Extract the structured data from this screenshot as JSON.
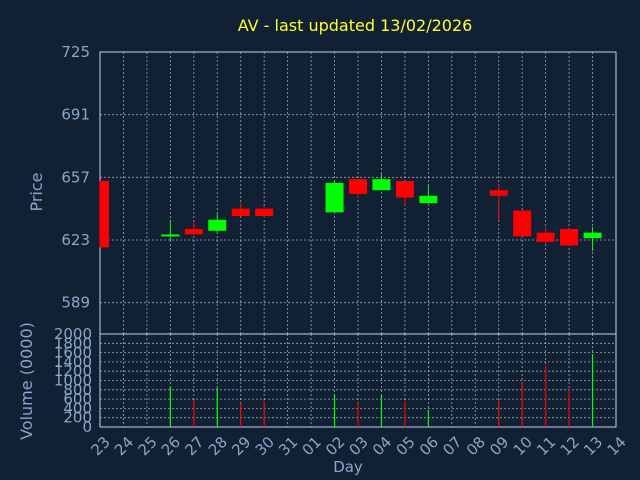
{
  "colors": {
    "background": "#112033",
    "plot_border": "#c8d2dc",
    "grid": "#c8d2dc",
    "title": "#ffff33",
    "axis_text": "#8aa6c8",
    "up": "#00ff00",
    "down": "#ff0000"
  },
  "chart_data": [
    {
      "type": "candlestick",
      "title": "AV - last updated 13/02/2026",
      "ylabel": "Price",
      "ylim": [
        572,
        725
      ],
      "yticks": [
        589,
        623,
        657,
        691,
        725
      ],
      "grid": true,
      "candles": [
        {
          "day": "23",
          "open": 655,
          "high": 655,
          "low": 619,
          "close": 619
        },
        {
          "day": "26",
          "open": 625,
          "high": 634,
          "low": 623,
          "close": 626
        },
        {
          "day": "27",
          "open": 629,
          "high": 633,
          "low": 626,
          "close": 626
        },
        {
          "day": "28",
          "open": 628,
          "high": 637,
          "low": 627,
          "close": 634
        },
        {
          "day": "29",
          "open": 640,
          "high": 643,
          "low": 636,
          "close": 636
        },
        {
          "day": "30",
          "open": 640,
          "high": 641,
          "low": 635,
          "close": 636
        },
        {
          "day": "02",
          "open": 638,
          "high": 655,
          "low": 638,
          "close": 654
        },
        {
          "day": "03",
          "open": 656,
          "high": 656,
          "low": 646,
          "close": 648
        },
        {
          "day": "04",
          "open": 650,
          "high": 659,
          "low": 650,
          "close": 656
        },
        {
          "day": "05",
          "open": 655,
          "high": 655,
          "low": 642,
          "close": 646
        },
        {
          "day": "06",
          "open": 643,
          "high": 653,
          "low": 643,
          "close": 647
        },
        {
          "day": "09",
          "open": 650,
          "high": 653,
          "low": 634,
          "close": 647
        },
        {
          "day": "10",
          "open": 639,
          "high": 639,
          "low": 625,
          "close": 625
        },
        {
          "day": "11",
          "open": 627,
          "high": 630,
          "low": 621,
          "close": 622
        },
        {
          "day": "12",
          "open": 629,
          "high": 629,
          "low": 620,
          "close": 620
        },
        {
          "day": "13",
          "open": 624,
          "high": 630,
          "low": 617,
          "close": 627
        }
      ]
    },
    {
      "type": "bar",
      "ylabel": "Volume (0000)",
      "ylim": [
        0,
        2000
      ],
      "yticks": [
        0,
        200,
        400,
        600,
        800,
        1000,
        1200,
        1400,
        1600,
        1800,
        2000
      ],
      "xlabel": "Day",
      "categories": [
        "23",
        "24",
        "25",
        "26",
        "27",
        "28",
        "29",
        "30",
        "31",
        "01",
        "02",
        "03",
        "04",
        "05",
        "06",
        "07",
        "08",
        "09",
        "10",
        "11",
        "12",
        "13",
        "14"
      ],
      "values": [
        0,
        0,
        0,
        860,
        580,
        840,
        500,
        560,
        0,
        0,
        700,
        510,
        690,
        560,
        370,
        0,
        0,
        570,
        960,
        1320,
        800,
        1560,
        0
      ]
    }
  ]
}
